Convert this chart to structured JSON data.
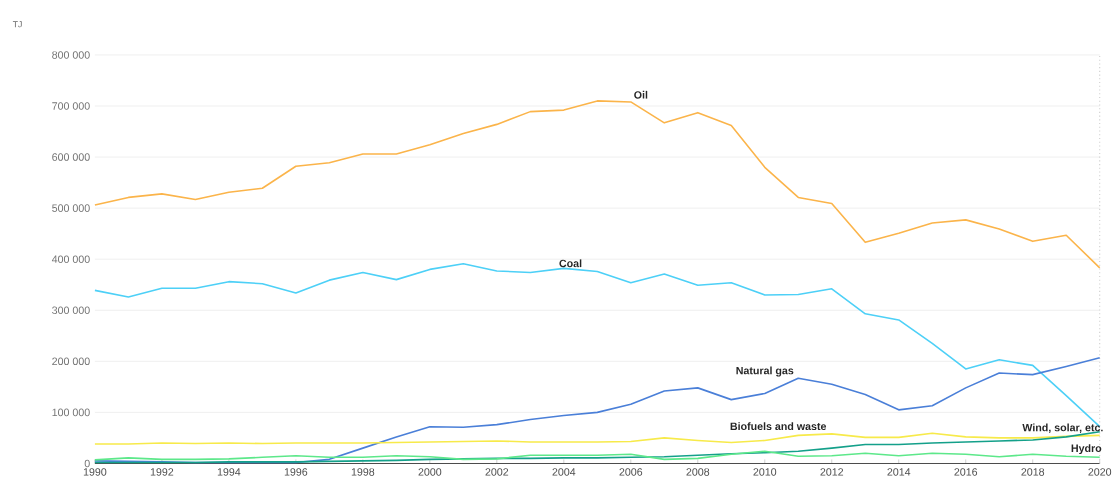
{
  "chart_data": {
    "type": "line",
    "ylabel": "TJ",
    "x": [
      1990,
      1991,
      1992,
      1993,
      1994,
      1995,
      1996,
      1997,
      1998,
      1999,
      2000,
      2001,
      2002,
      2003,
      2004,
      2005,
      2006,
      2007,
      2008,
      2009,
      2010,
      2011,
      2012,
      2013,
      2014,
      2015,
      2016,
      2017,
      2018,
      2019,
      2020
    ],
    "xlim": [
      1990,
      2020
    ],
    "xticks": [
      1990,
      1992,
      1994,
      1996,
      1998,
      2000,
      2002,
      2004,
      2006,
      2008,
      2010,
      2012,
      2014,
      2016,
      2018,
      2020
    ],
    "ylim": [
      0,
      800000
    ],
    "yticks": [
      {
        "value": 0,
        "label": "0"
      },
      {
        "value": 100000,
        "label": "100 000"
      },
      {
        "value": 200000,
        "label": "200 000"
      },
      {
        "value": 300000,
        "label": "300 000"
      },
      {
        "value": 400000,
        "label": "400 000"
      },
      {
        "value": 500000,
        "label": "500 000"
      },
      {
        "value": 600000,
        "label": "600 000"
      },
      {
        "value": 700000,
        "label": "700 000"
      },
      {
        "value": 800000,
        "label": "800 000"
      }
    ],
    "grid": "y",
    "ref_lines": [
      {
        "axis": "x",
        "value": 2020,
        "color": "#cccccc",
        "line_style": "dotted"
      }
    ],
    "series": [
      {
        "name": "Oil",
        "color": "#fbb44a",
        "values": [
          506000,
          521000,
          528000,
          517000,
          531000,
          539000,
          582000,
          589000,
          606000,
          606000,
          624000,
          646000,
          664000,
          689000,
          692000,
          710000,
          708000,
          667000,
          687000,
          662000,
          580000,
          521000,
          509000,
          433000,
          451000,
          471000,
          477000,
          459000,
          435000,
          447000,
          383000
        ]
      },
      {
        "name": "Coal",
        "color": "#4dd0f7",
        "values": [
          339000,
          326000,
          343000,
          343000,
          356000,
          352000,
          334000,
          359000,
          374000,
          360000,
          380000,
          391000,
          377000,
          374000,
          382000,
          376000,
          354000,
          371000,
          349000,
          354000,
          330000,
          331000,
          342000,
          293000,
          281000,
          235000,
          185000,
          203000,
          192000,
          133000,
          72000
        ]
      },
      {
        "name": "Natural gas",
        "color": "#4a7fd8",
        "values": [
          5000,
          4000,
          3000,
          2000,
          2000,
          2000,
          2000,
          8000,
          30000,
          52000,
          72000,
          71000,
          76000,
          86000,
          94000,
          100000,
          116000,
          142000,
          148000,
          125000,
          137000,
          167000,
          155000,
          135000,
          105000,
          113000,
          148000,
          177000,
          174000,
          190000,
          207000
        ]
      },
      {
        "name": "Biofuels and waste",
        "color": "#f7ea4a",
        "values": [
          38000,
          38000,
          40000,
          39000,
          40000,
          39000,
          40000,
          40000,
          40000,
          41000,
          42000,
          43000,
          44000,
          42000,
          42000,
          42000,
          43000,
          50000,
          45000,
          41000,
          45000,
          55000,
          58000,
          51000,
          51000,
          59000,
          52000,
          50000,
          50000,
          53000,
          55000
        ]
      },
      {
        "name": "Wind, solar, etc.",
        "color": "#14a08a",
        "values": [
          2000,
          2000,
          2000,
          2000,
          3000,
          3000,
          3000,
          4000,
          5000,
          6000,
          8000,
          9000,
          10000,
          10000,
          11000,
          11000,
          12000,
          13000,
          16000,
          19000,
          21000,
          24000,
          30000,
          37000,
          37000,
          40000,
          42000,
          44000,
          46000,
          52000,
          62000
        ]
      },
      {
        "name": "Hydro",
        "color": "#5de88a",
        "values": [
          7000,
          11000,
          8000,
          8000,
          9000,
          12000,
          15000,
          12000,
          12000,
          15000,
          13000,
          8000,
          9000,
          16000,
          16000,
          16000,
          18000,
          8000,
          10000,
          18000,
          24000,
          14000,
          15000,
          20000,
          15000,
          20000,
          18000,
          13000,
          18000,
          14000,
          12000
        ]
      }
    ]
  }
}
